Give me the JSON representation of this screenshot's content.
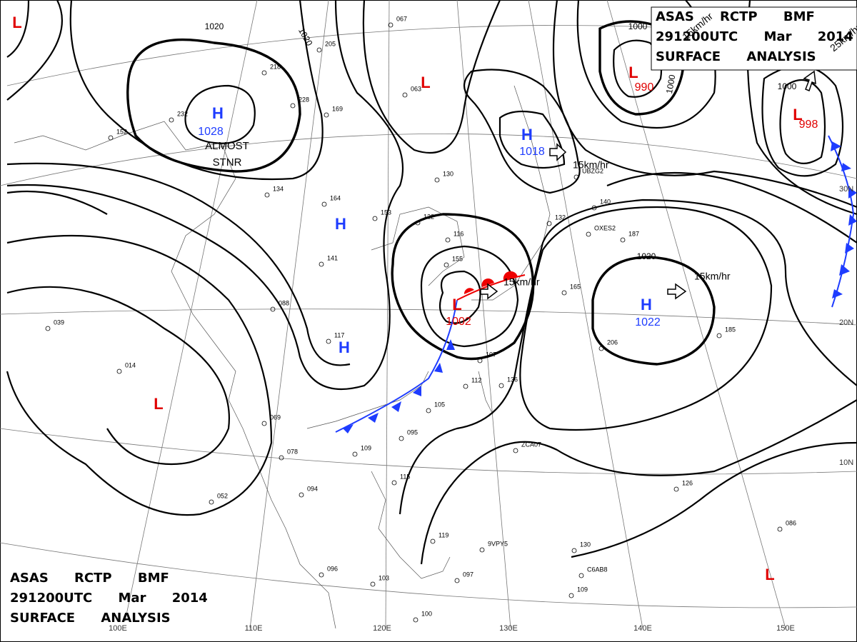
{
  "header": {
    "lines": [
      "ASAS RCTP BMF",
      "291200UTC Mar 2014",
      "SURFACE ANALYSIS"
    ]
  },
  "systems": [
    {
      "letter": "H",
      "pressure": 1028,
      "color": "#1e3cff"
    },
    {
      "letter": "H",
      "pressure": 1018,
      "color": "#1e3cff"
    },
    {
      "letter": "H",
      "pressure": 1022,
      "color": "#1e3cff"
    },
    {
      "letter": "H",
      "color": "#1e3cff"
    },
    {
      "letter": "H",
      "color": "#1e3cff"
    },
    {
      "letter": "L",
      "pressure": 1002,
      "color": "#e00000"
    },
    {
      "letter": "L",
      "pressure": 990,
      "color": "#e00000"
    },
    {
      "letter": "L",
      "pressure": 998,
      "color": "#e00000"
    },
    {
      "letter": "L",
      "color": "#e00000"
    },
    {
      "letter": "L",
      "color": "#e00000"
    },
    {
      "letter": "L",
      "color": "#e00000"
    },
    {
      "letter": "L",
      "color": "#e00000"
    }
  ],
  "notes": [
    "ALMOST",
    "STNR"
  ],
  "motions": [
    "15km/hr",
    "15km/hr",
    "15km/hr",
    "25km/hr",
    "15km/hr"
  ],
  "isobar_labels": [
    1020,
    1020,
    1000,
    1000,
    1000,
    1020
  ],
  "longitudes": [
    "100E",
    "110E",
    "120E",
    "130E",
    "140E",
    "150E"
  ],
  "latitudes": [
    "30N",
    "20N",
    "10N"
  ],
  "stations": [
    "134",
    "153",
    "164",
    "141",
    "117",
    "088",
    "039",
    "014",
    "052",
    "069",
    "078",
    "094",
    "096",
    "103",
    "109",
    "095",
    "105",
    "107",
    "112",
    "136",
    "115",
    "119",
    "097",
    "100",
    "130",
    "126",
    "086",
    "109",
    "116",
    "155",
    "187",
    "206",
    "185",
    "140",
    "132",
    "165",
    "067",
    "063",
    "152",
    "218",
    "205",
    "232",
    "228",
    "169",
    "130",
    "122",
    "ZCA07",
    "9VPY5",
    "C6AB8",
    "OXES2",
    "UBZG2"
  ]
}
